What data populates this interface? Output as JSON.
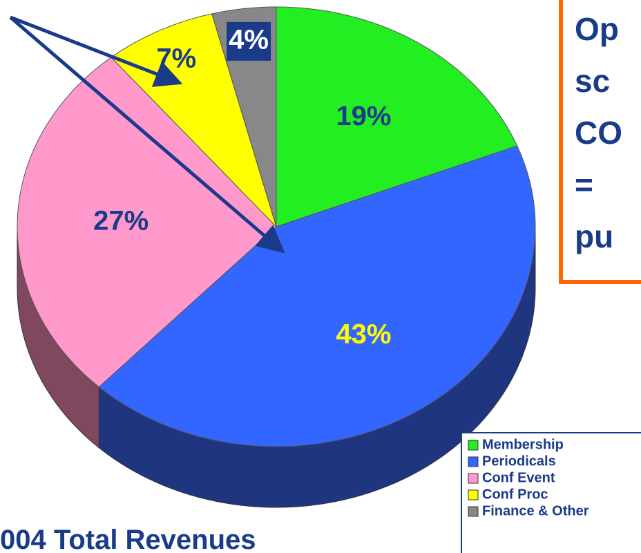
{
  "chart_data": {
    "type": "pie",
    "title": "004 Total Revenues",
    "note_lines": [
      "Op",
      "sc",
      "CO",
      "=",
      "pu"
    ],
    "categories": [
      "Membership",
      "Periodicals",
      "Conf Event",
      "Conf Proc",
      "Finance & Other"
    ],
    "values": [
      19,
      43,
      27,
      7,
      4
    ],
    "value_labels": [
      "19%",
      "43%",
      "27%",
      "7%",
      "4%"
    ],
    "colors": [
      "#22ee22",
      "#3366ff",
      "#ff99cc",
      "#ffff00",
      "#888888"
    ],
    "side_colors": [
      "#118811",
      "#1f3580",
      "#80485f",
      "#888800",
      "#444444"
    ],
    "label_colors": [
      "#1a3a8a",
      "#ffff00",
      "#1a3a8a",
      "#1a3a8a",
      "#ffffff"
    ],
    "legend": "lower right"
  }
}
